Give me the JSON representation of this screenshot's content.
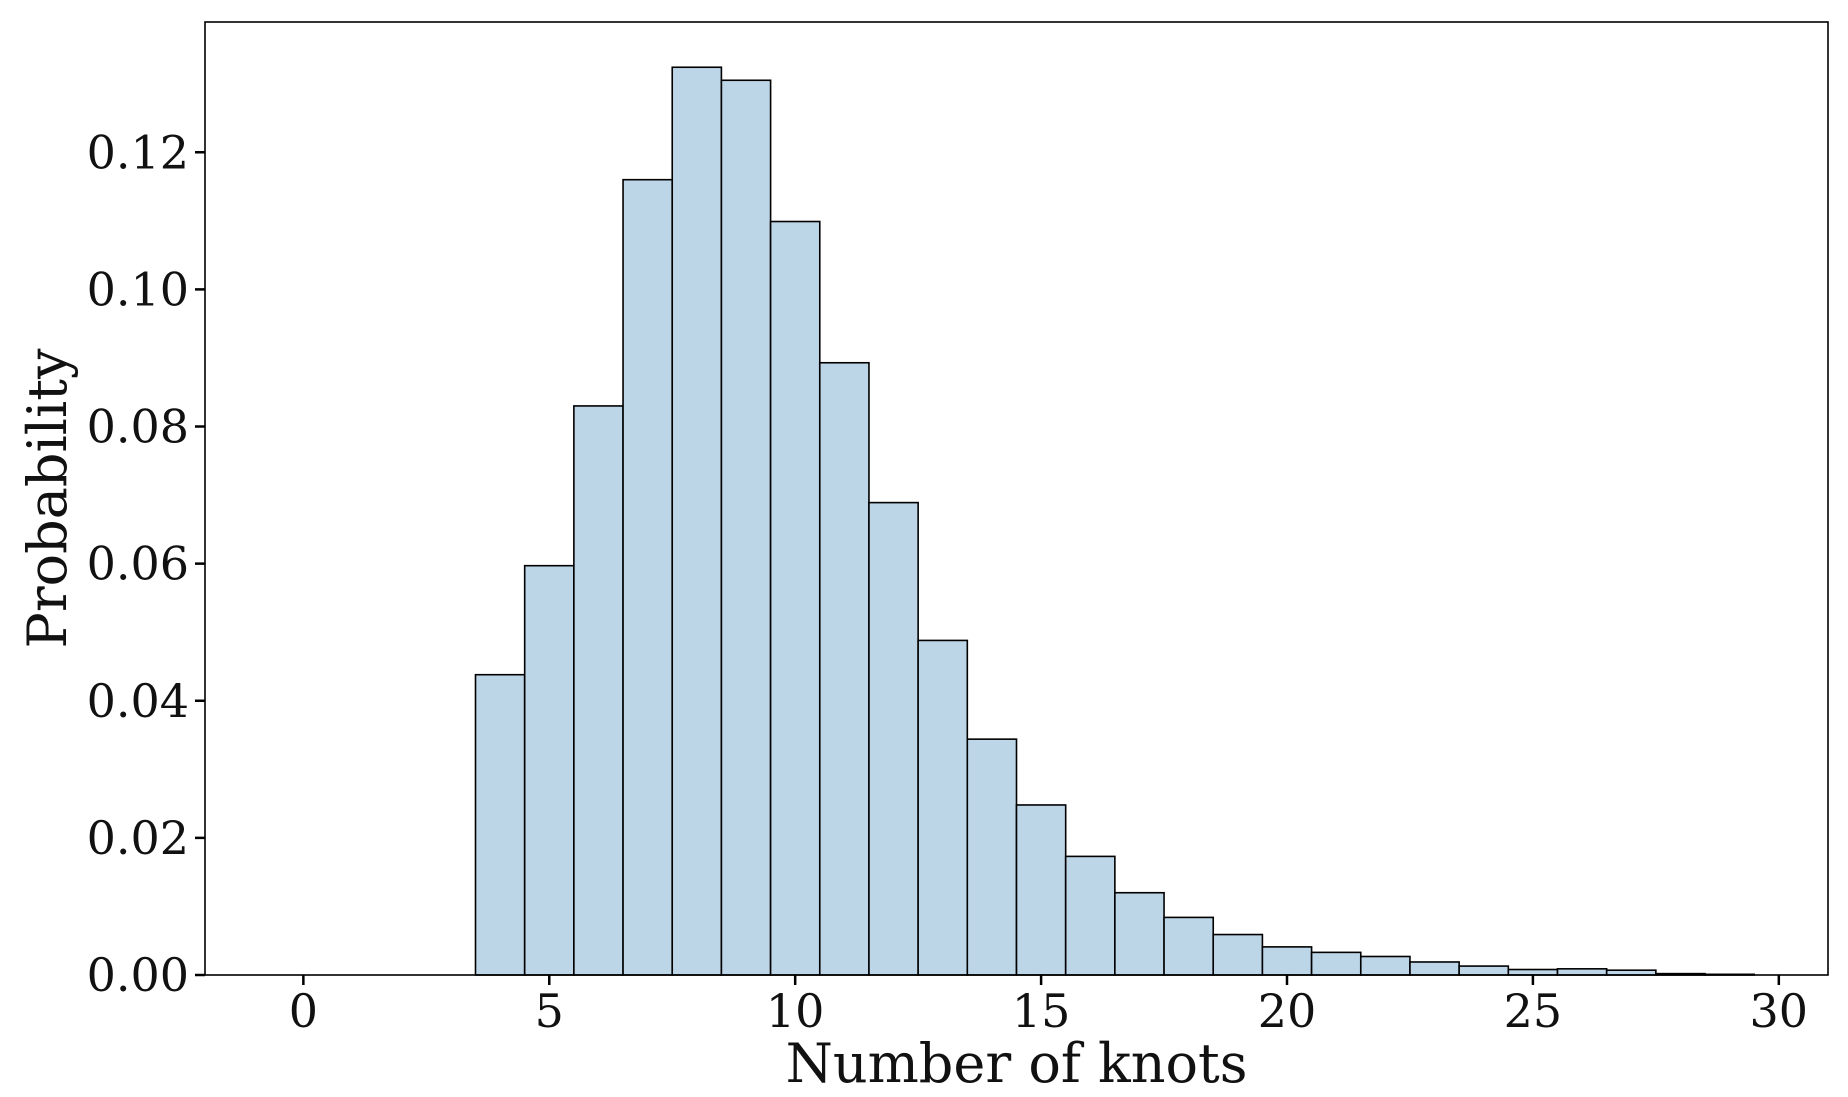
{
  "chart_data": {
    "type": "bar",
    "title": "",
    "xlabel": "Number of knots",
    "ylabel": "Probability",
    "xlim": [
      -2,
      31
    ],
    "ylim": [
      0,
      0.139
    ],
    "x_ticks": [
      0,
      5,
      10,
      15,
      20,
      25,
      30
    ],
    "x_tick_labels": [
      "0",
      "5",
      "10",
      "15",
      "20",
      "25",
      "30"
    ],
    "y_ticks": [
      0,
      0.02,
      0.04,
      0.06,
      0.08,
      0.1,
      0.12
    ],
    "y_tick_labels": [
      "0.00",
      "0.02",
      "0.04",
      "0.06",
      "0.08",
      "0.10",
      "0.12"
    ],
    "bar_width": 1,
    "bar_color": "#bcd6e8",
    "edge_color": "#000000",
    "grid": false,
    "x": [
      0,
      1,
      2,
      3,
      4,
      5,
      6,
      7,
      8,
      9,
      10,
      11,
      12,
      13,
      14,
      15,
      16,
      17,
      18,
      19,
      20,
      21,
      22,
      23,
      24,
      25,
      26,
      27,
      28,
      29
    ],
    "values": [
      0,
      0,
      0,
      0,
      0.0438,
      0.0597,
      0.083,
      0.116,
      0.1324,
      0.1305,
      0.1099,
      0.0893,
      0.0689,
      0.0488,
      0.0344,
      0.0248,
      0.0173,
      0.012,
      0.0084,
      0.0059,
      0.0041,
      0.0033,
      0.0027,
      0.0019,
      0.0013,
      0.0008,
      0.0009,
      0.0007,
      0.0002,
      0.0001
    ]
  }
}
